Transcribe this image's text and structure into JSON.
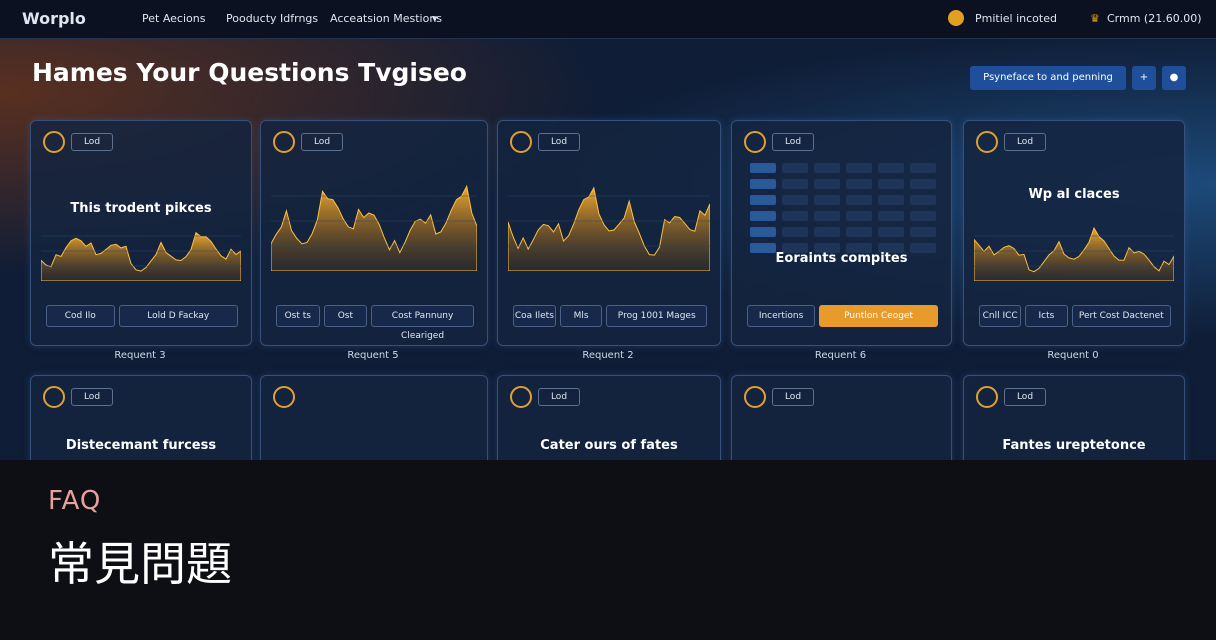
{
  "nav": {
    "brand": "Worplo",
    "items": [
      "Pet Aecions",
      "Pooducty Idfrngs",
      "Acceatsion Mestions"
    ],
    "status": "Pmitiel incoted",
    "account": "Crmm (21.60.00)"
  },
  "header": {
    "title": "Hames Your Questions Tvgiseo",
    "button": "Psyneface to and penning",
    "icon_buttons": [
      "+"
    ]
  },
  "cards": [
    {
      "badge": "Lod",
      "title": "This trodent pikces",
      "buttons": [
        "Cod Ilo",
        "Lold D Fackay"
      ],
      "label": "Requent 3"
    },
    {
      "badge": "Lod",
      "title": "",
      "buttons": [
        "Ost ts",
        "Ost",
        "Cost Pannuny Cleariged"
      ],
      "label": "Requent 5"
    },
    {
      "badge": "Lod",
      "title": "",
      "buttons": [
        "Coa Ilets",
        "Mls",
        "Prog 1001 Mages"
      ],
      "label": "Requent 2"
    },
    {
      "badge": "Lod",
      "title": "Eoraints compites",
      "buttons": [
        "Incertions",
        "Puntlon Ceoget"
      ],
      "label": "Requent 6"
    },
    {
      "badge": "Lod",
      "title": "Wp al claces",
      "buttons": [
        "Cnll ICC",
        "Icts",
        "Pert Cost Dactenet"
      ],
      "label": "Requent 0"
    }
  ],
  "cards_row2": [
    {
      "badge": "Lod",
      "title": "Distecemant furcess"
    },
    {
      "badge": "",
      "title": ""
    },
    {
      "badge": "Lod",
      "title": "Cater ours of fates"
    },
    {
      "badge": "Lod",
      "title": ""
    },
    {
      "badge": "Lod",
      "title": "Fantes ureptetonce"
    }
  ],
  "footer": {
    "kicker": "FAQ",
    "title": "常見問題"
  }
}
